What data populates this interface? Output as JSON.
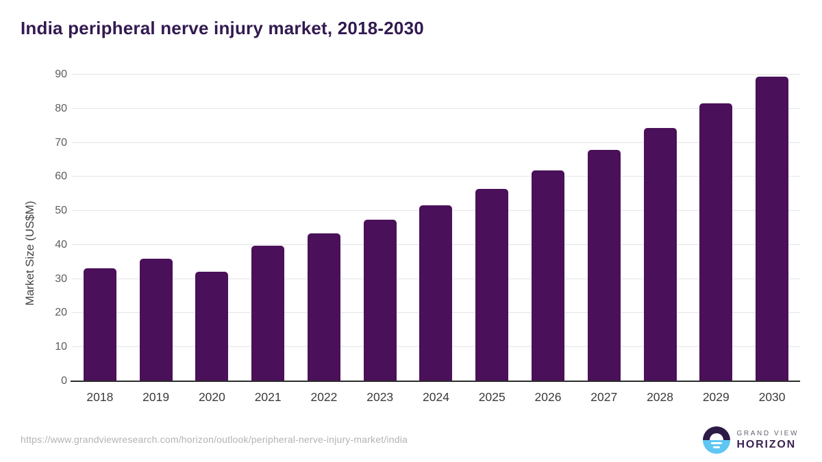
{
  "header": {
    "title": "India peripheral nerve injury market, 2018-2030"
  },
  "chart_data": {
    "type": "bar",
    "title": "India peripheral nerve injury market, 2018-2030",
    "categories": [
      "2018",
      "2019",
      "2020",
      "2021",
      "2022",
      "2023",
      "2024",
      "2025",
      "2026",
      "2027",
      "2028",
      "2029",
      "2030"
    ],
    "values": [
      33.2,
      35.9,
      32.2,
      39.8,
      43.4,
      47.5,
      51.7,
      56.5,
      61.9,
      68.0,
      74.3,
      81.5,
      89.5
    ],
    "xlabel": "",
    "ylabel": "Market Size (US$M)",
    "ylim": [
      0,
      90
    ],
    "yticks": [
      0,
      10,
      20,
      30,
      40,
      50,
      60,
      70,
      80,
      90
    ],
    "grid": true,
    "legend": "none",
    "bar_color": "#4a1059"
  },
  "colors": {
    "title_text": "#321a50",
    "bar": "#4a1059",
    "gridline": "#e4e4e4",
    "axis_line": "#2b2b2b",
    "tick_text": "#5c5c5c",
    "url_text": "#b3b3b3",
    "logo_dark": "#2d1a45",
    "logo_blue": "#5ec6f2",
    "logo_purple_text": "#3b2353"
  },
  "footer": {
    "source_url": "https://www.grandviewresearch.com/horizon/outlook/peripheral-nerve-injury-market/india",
    "brand": {
      "top": "GRAND VIEW",
      "bottom": "HORIZON"
    }
  }
}
